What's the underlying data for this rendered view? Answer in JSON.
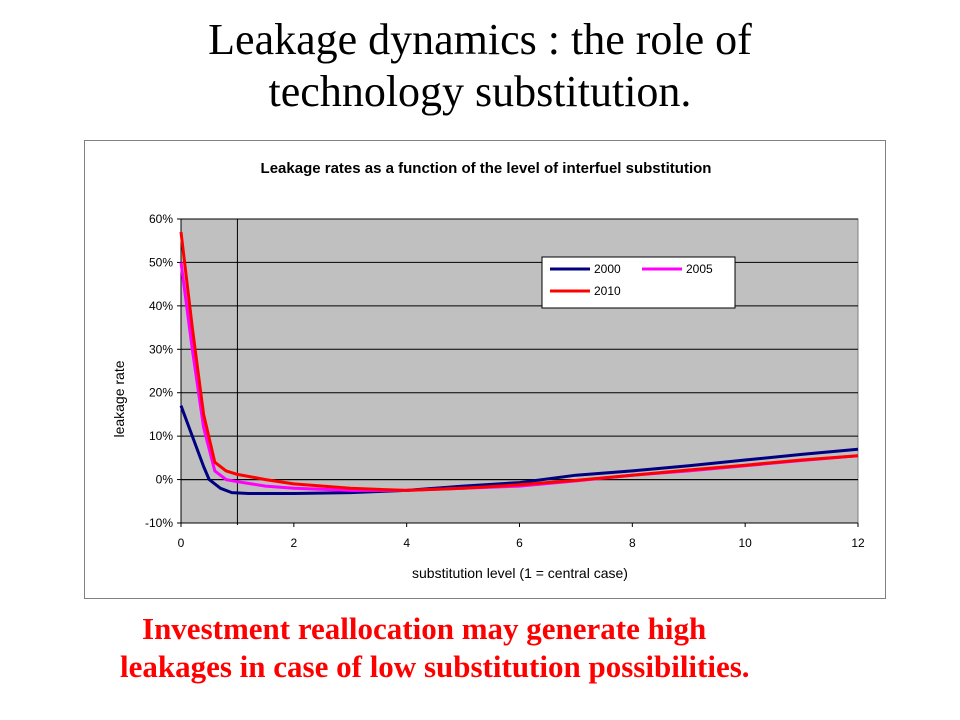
{
  "slide": {
    "title_line1": "Leakage dynamics : the role of",
    "title_line2": "technology substitution.",
    "caption_line1": "Investment reallocation may generate high",
    "caption_line2": "leakages in case of low substitution possibilities."
  },
  "colors": {
    "plot_bg": "#c0c0c0",
    "caption": "#ff0000"
  },
  "chart_data": {
    "type": "line",
    "title": "Leakage rates as a function of the level of interfuel substitution",
    "xlabel": "substitution level (1 = central case)",
    "ylabel": "leakage rate",
    "xlim": [
      0,
      12
    ],
    "ylim": [
      -10,
      60
    ],
    "x_ticks": [
      0,
      2,
      4,
      6,
      8,
      10,
      12
    ],
    "x_tick_labels": [
      "0",
      "2",
      "4",
      "6",
      "8",
      "10",
      "12"
    ],
    "y_ticks": [
      -10,
      0,
      10,
      20,
      30,
      40,
      50,
      60
    ],
    "y_tick_labels": [
      "-10%",
      "0%",
      "10%",
      "20%",
      "30%",
      "40%",
      "50%",
      "60%"
    ],
    "grid": true,
    "reference_line_x": 1,
    "legend_position": "top-right",
    "series": [
      {
        "name": "2000",
        "color": "#000080",
        "points": [
          [
            0.0,
            17
          ],
          [
            0.2,
            10
          ],
          [
            0.4,
            3
          ],
          [
            0.5,
            0
          ],
          [
            0.7,
            -2
          ],
          [
            0.9,
            -3
          ],
          [
            1.2,
            -3.2
          ],
          [
            2.0,
            -3.2
          ],
          [
            3.0,
            -3.0
          ],
          [
            4.0,
            -2.5
          ],
          [
            5.0,
            -1.5
          ],
          [
            6.0,
            -0.7
          ],
          [
            7.0,
            1.0
          ],
          [
            8.0,
            2.0
          ],
          [
            9.0,
            3.2
          ],
          [
            10.0,
            4.5
          ],
          [
            11.0,
            5.8
          ],
          [
            12.0,
            7.0
          ]
        ]
      },
      {
        "name": "2005",
        "color": "#ff00ff",
        "points": [
          [
            0.0,
            50
          ],
          [
            0.2,
            30
          ],
          [
            0.4,
            12
          ],
          [
            0.6,
            2
          ],
          [
            0.8,
            0
          ],
          [
            1.0,
            -0.5
          ],
          [
            1.5,
            -1.5
          ],
          [
            2.0,
            -2.0
          ],
          [
            3.0,
            -2.5
          ],
          [
            4.0,
            -2.5
          ],
          [
            5.0,
            -2.0
          ],
          [
            6.0,
            -1.5
          ],
          [
            7.0,
            -0.3
          ],
          [
            8.0,
            1.0
          ],
          [
            9.0,
            2.0
          ],
          [
            10.0,
            3.2
          ],
          [
            11.0,
            4.4
          ],
          [
            12.0,
            5.5
          ]
        ]
      },
      {
        "name": "2010",
        "color": "#ff0000",
        "points": [
          [
            0.0,
            57
          ],
          [
            0.2,
            35
          ],
          [
            0.4,
            15
          ],
          [
            0.6,
            4
          ],
          [
            0.8,
            2
          ],
          [
            1.0,
            1.2
          ],
          [
            1.5,
            0
          ],
          [
            2.0,
            -1.0
          ],
          [
            3.0,
            -2.0
          ],
          [
            4.0,
            -2.5
          ],
          [
            5.0,
            -2.0
          ],
          [
            6.0,
            -1.2
          ],
          [
            7.0,
            -0.2
          ],
          [
            8.0,
            1.0
          ],
          [
            9.0,
            2.2
          ],
          [
            10.0,
            3.3
          ],
          [
            11.0,
            4.5
          ],
          [
            12.0,
            5.5
          ]
        ]
      }
    ]
  }
}
